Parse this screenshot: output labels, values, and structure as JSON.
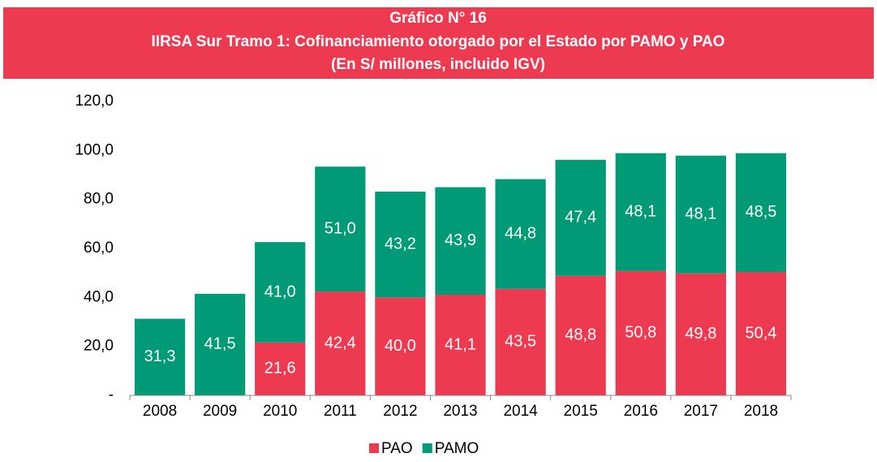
{
  "chart_data": {
    "type": "stacked_bar",
    "title": "Gráfico N° 16",
    "subtitle": "IIRSA Sur Tramo 1: Cofinanciamiento otorgado por el Estado por PAMO y PAO",
    "subtitle_2": "(En S/ millones, incluido IGV)",
    "categories": [
      "2008",
      "2009",
      "2010",
      "2011",
      "2012",
      "2013",
      "2014",
      "2015",
      "2016",
      "2017",
      "2018"
    ],
    "series": [
      {
        "name": "PAO",
        "color": "#ee3a50",
        "values": [
          null,
          null,
          21.6,
          42.4,
          40.0,
          41.1,
          43.5,
          48.8,
          50.8,
          49.8,
          50.4
        ],
        "value_labels": [
          null,
          null,
          "21,6",
          "42,4",
          "40,0",
          "41,1",
          "43,5",
          "48,8",
          "50,8",
          "49,8",
          "50,4"
        ]
      },
      {
        "name": "PAMO",
        "color": "#009a76",
        "values": [
          31.3,
          41.5,
          41.0,
          51.0,
          43.2,
          43.9,
          44.8,
          47.4,
          48.1,
          48.1,
          48.5
        ],
        "value_labels": [
          "31,3",
          "41,5",
          "41,0",
          "51,0",
          "43,2",
          "43,9",
          "44,8",
          "47,4",
          "48,1",
          "48,1",
          "48,5"
        ]
      }
    ],
    "ylim": [
      0,
      120
    ],
    "yticks": [
      {
        "value": 0,
        "label": "-"
      },
      {
        "value": 20,
        "label": "20,0"
      },
      {
        "value": 40,
        "label": "40,0"
      },
      {
        "value": 60,
        "label": "60,0"
      },
      {
        "value": 80,
        "label": "80,0"
      },
      {
        "value": 100,
        "label": "100,0"
      },
      {
        "value": 120,
        "label": "120,0"
      }
    ],
    "legend": "bottom"
  }
}
